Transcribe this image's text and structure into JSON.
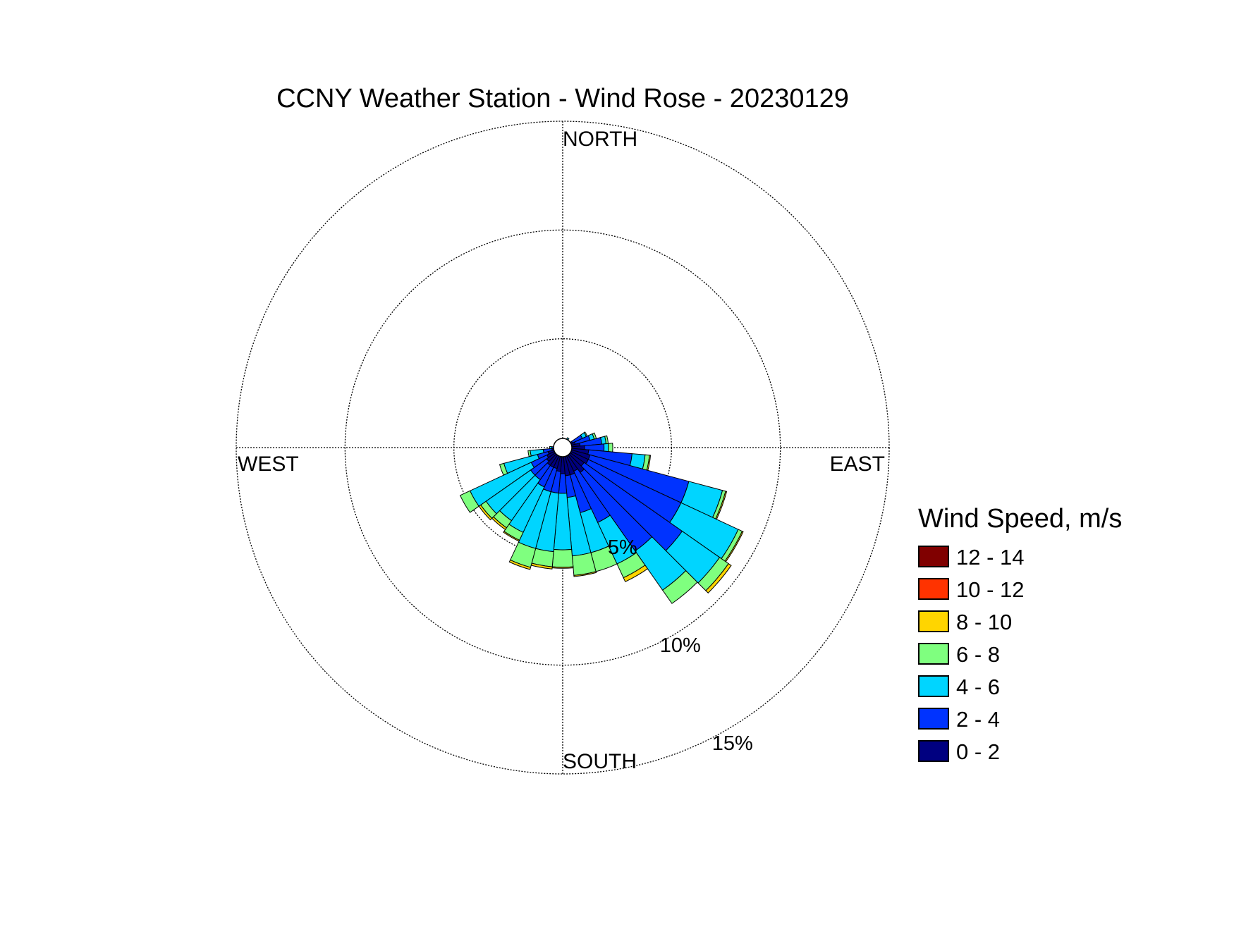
{
  "chart_data": {
    "type": "wind-rose",
    "title": "CCNY Weather Station - Wind Rose - 20230129",
    "directions": {
      "north": "NORTH",
      "south": "SOUTH",
      "east": "EAST",
      "west": "WEST"
    },
    "rings": [
      {
        "value": 5,
        "label": "5%"
      },
      {
        "value": 10,
        "label": "10%"
      },
      {
        "value": 15,
        "label": "15%"
      }
    ],
    "rmax": 15,
    "legend": {
      "title": "Wind Speed, m/s",
      "placement": "right",
      "bins": [
        {
          "label": "12 - 14",
          "color": "#800000"
        },
        {
          "label": "10 - 12",
          "color": "#ff3300"
        },
        {
          "label": "8 - 10",
          "color": "#ffd500"
        },
        {
          "label": "6 - 8",
          "color": "#7fff7f"
        },
        {
          "label": "4 - 6",
          "color": "#00d5ff"
        },
        {
          "label": "2 - 4",
          "color": "#0033ff"
        },
        {
          "label": "0 - 2",
          "color": "#000080"
        }
      ]
    },
    "bins_order_low_to_high": [
      "0 - 2",
      "2 - 4",
      "4 - 6",
      "6 - 8",
      "8 - 10",
      "10 - 12",
      "12 - 14"
    ],
    "sector_width_deg": 10,
    "sectors": [
      {
        "dir": 10,
        "cumulative": [
          0.1,
          0.15,
          0.2,
          0.2,
          0.2,
          0.2,
          0.2
        ]
      },
      {
        "dir": 20,
        "cumulative": [
          0.2,
          0.3,
          0.35,
          0.35,
          0.35,
          0.35,
          0.35
        ]
      },
      {
        "dir": 30,
        "cumulative": [
          0.2,
          0.4,
          0.5,
          0.5,
          0.5,
          0.5,
          0.5
        ]
      },
      {
        "dir": 60,
        "cumulative": [
          0.5,
          1.0,
          1.2,
          1.25,
          1.25,
          1.25,
          1.25
        ]
      },
      {
        "dir": 70,
        "cumulative": [
          0.6,
          1.3,
          1.5,
          1.6,
          1.6,
          1.6,
          1.6
        ]
      },
      {
        "dir": 80,
        "cumulative": [
          0.8,
          1.8,
          2.0,
          2.1,
          2.1,
          2.1,
          2.1
        ]
      },
      {
        "dir": 90,
        "cumulative": [
          1.0,
          1.9,
          2.1,
          2.3,
          2.3,
          2.3,
          2.3
        ]
      },
      {
        "dir": 100,
        "cumulative": [
          1.2,
          3.2,
          3.8,
          4.0,
          4.05,
          4.05,
          4.05
        ]
      },
      {
        "dir": 110,
        "cumulative": [
          1.3,
          6.0,
          7.6,
          7.75,
          7.8,
          7.8,
          7.8
        ]
      },
      {
        "dir": 120,
        "cumulative": [
          1.3,
          6.0,
          8.9,
          9.1,
          9.15,
          9.15,
          9.15
        ]
      },
      {
        "dir": 130,
        "cumulative": [
          1.2,
          6.7,
          8.8,
          9.3,
          9.45,
          9.45,
          9.45
        ]
      },
      {
        "dir": 140,
        "cumulative": [
          1.4,
          5.8,
          8.0,
          8.75,
          8.75,
          8.75,
          8.75
        ]
      },
      {
        "dir": 150,
        "cumulative": [
          1.2,
          3.8,
          5.9,
          6.6,
          6.8,
          6.8,
          6.8
        ]
      },
      {
        "dir": 160,
        "cumulative": [
          1.3,
          3.1,
          5.0,
          5.9,
          5.9,
          5.9,
          5.9
        ]
      },
      {
        "dir": 170,
        "cumulative": [
          1.3,
          2.3,
          5.0,
          5.9,
          5.95,
          5.95,
          5.95
        ]
      },
      {
        "dir": 180,
        "cumulative": [
          1.2,
          2.1,
          4.7,
          5.5,
          5.55,
          5.55,
          5.55
        ]
      },
      {
        "dir": 190,
        "cumulative": [
          1.1,
          2.1,
          4.8,
          5.5,
          5.6,
          5.6,
          5.6
        ]
      },
      {
        "dir": 200,
        "cumulative": [
          1.0,
          2.1,
          4.8,
          5.7,
          5.8,
          5.8,
          5.8
        ]
      },
      {
        "dir": 210,
        "cumulative": [
          1.0,
          2.0,
          4.3,
          4.7,
          4.75,
          4.75,
          4.75
        ]
      },
      {
        "dir": 220,
        "cumulative": [
          1.0,
          1.8,
          4.1,
          4.5,
          4.6,
          4.6,
          4.6
        ]
      },
      {
        "dir": 230,
        "cumulative": [
          0.9,
          1.8,
          4.3,
          4.6,
          4.7,
          4.7,
          4.7
        ]
      },
      {
        "dir": 240,
        "cumulative": [
          0.8,
          1.6,
          4.7,
          5.2,
          5.2,
          5.2,
          5.2
        ]
      },
      {
        "dir": 250,
        "cumulative": [
          0.7,
          1.2,
          2.8,
          3.0,
          3.0,
          3.0,
          3.0
        ]
      },
      {
        "dir": 260,
        "cumulative": [
          0.5,
          0.9,
          1.5,
          1.6,
          1.6,
          1.6,
          1.6
        ]
      },
      {
        "dir": 270,
        "cumulative": [
          0.3,
          0.5,
          0.6,
          0.6,
          0.6,
          0.6,
          0.6
        ]
      },
      {
        "dir": 340,
        "cumulative": [
          0.1,
          0.15,
          0.15,
          0.15,
          0.15,
          0.15,
          0.15
        ]
      },
      {
        "dir": 350,
        "cumulative": [
          0.1,
          0.12,
          0.12,
          0.12,
          0.12,
          0.12,
          0.12
        ]
      }
    ]
  }
}
